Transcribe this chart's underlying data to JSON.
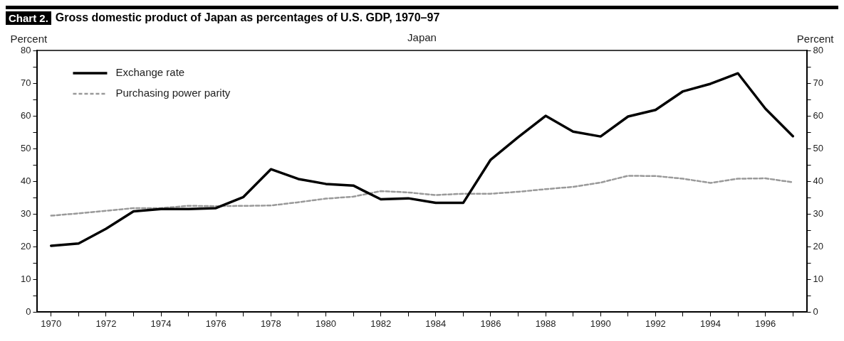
{
  "chart_data": {
    "type": "line",
    "title": "Gross domestic product of Japan as percentages of U.S. GDP, 1970–97",
    "subtitle": "Japan",
    "annotations": [
      "Chart 2."
    ],
    "ylabel": "Percent",
    "y2label": "Percent",
    "x": [
      1970,
      1971,
      1972,
      1973,
      1974,
      1975,
      1976,
      1977,
      1978,
      1979,
      1980,
      1981,
      1982,
      1983,
      1984,
      1985,
      1986,
      1987,
      1988,
      1989,
      1990,
      1991,
      1992,
      1993,
      1994,
      1995,
      1996,
      1997
    ],
    "series": [
      {
        "name": "Exchange rate",
        "color": "#000000",
        "line_style": "solid",
        "values": [
          20.3,
          21,
          25.5,
          30.8,
          31.5,
          31.5,
          31.8,
          35.2,
          43.7,
          40.7,
          39.2,
          38.7,
          34.5,
          34.8,
          33.4,
          33.4,
          46.6,
          53.5,
          60,
          55.2,
          53.7,
          59.8,
          61.8,
          67.5,
          69.8,
          73,
          62.2,
          53.8
        ]
      },
      {
        "name": "Purchasing power parity",
        "color": "#999999",
        "line_style": "dashed",
        "values": [
          29.5,
          30.2,
          31,
          31.8,
          31.8,
          32.5,
          32.4,
          32.5,
          32.6,
          33.6,
          34.7,
          35.3,
          37,
          36.6,
          35.8,
          36.2,
          36.2,
          36.8,
          37.6,
          38.3,
          39.6,
          41.7,
          41.6,
          40.8,
          39.5,
          40.8,
          40.9,
          39.7
        ]
      }
    ],
    "xlim": [
      1969.5,
      1997.5
    ],
    "xticks": [
      1970,
      {
        "value": 1971,
        "label": null
      },
      1972,
      {
        "value": 1973,
        "label": null
      },
      1974,
      {
        "value": 1975,
        "label": null
      },
      1976,
      {
        "value": 1977,
        "label": null
      },
      1978,
      {
        "value": 1979,
        "label": null
      },
      1980,
      {
        "value": 1981,
        "label": null
      },
      1982,
      {
        "value": 1983,
        "label": null
      },
      1984,
      {
        "value": 1985,
        "label": null
      },
      1986,
      {
        "value": 1987,
        "label": null
      },
      1988,
      {
        "value": 1989,
        "label": null
      },
      1990,
      {
        "value": 1991,
        "label": null
      },
      1992,
      {
        "value": 1993,
        "label": null
      },
      1994,
      {
        "value": 1995,
        "label": null
      },
      1996,
      {
        "value": 1997,
        "label": null
      }
    ],
    "ylim": [
      0,
      80
    ],
    "yticks": [
      0,
      {
        "value": 5,
        "label": null
      },
      10,
      {
        "value": 15,
        "label": null
      },
      20,
      {
        "value": 25,
        "label": null
      },
      30,
      {
        "value": 35,
        "label": null
      },
      40,
      {
        "value": 45,
        "label": null
      },
      50,
      {
        "value": 55,
        "label": null
      },
      60,
      {
        "value": 65,
        "label": null
      },
      70,
      {
        "value": 75,
        "label": null
      },
      80
    ],
    "y2lim": [
      0,
      80
    ],
    "y2ticks": [
      0,
      {
        "value": 5,
        "label": null
      },
      10,
      {
        "value": 15,
        "label": null
      },
      20,
      {
        "value": 25,
        "label": null
      },
      30,
      {
        "value": 35,
        "label": null
      },
      40,
      {
        "value": 45,
        "label": null
      },
      50,
      {
        "value": 55,
        "label": null
      },
      60,
      {
        "value": 65,
        "label": null
      },
      70,
      {
        "value": 75,
        "label": null
      },
      80
    ],
    "grid": false,
    "legend": "top left",
    "marker": "none"
  }
}
